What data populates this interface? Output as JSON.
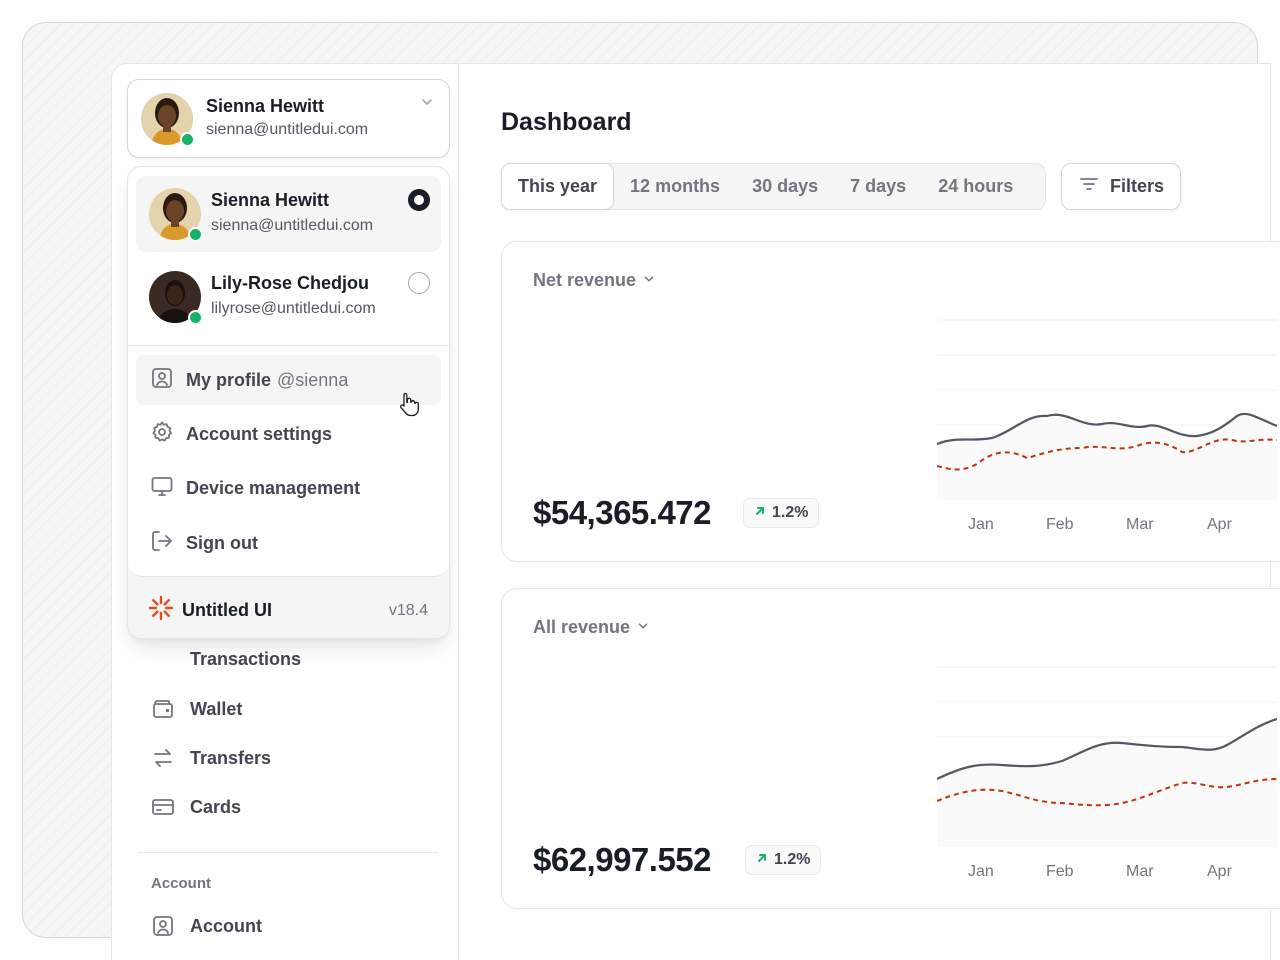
{
  "current_user": {
    "name": "Sienna Hewitt",
    "email": "sienna@untitledui.com"
  },
  "accounts": [
    {
      "name": "Sienna Hewitt",
      "email": "sienna@untitledui.com",
      "selected": true
    },
    {
      "name": "Lily-Rose Chedjou",
      "email": "lilyrose@untitledui.com",
      "selected": false
    }
  ],
  "menu": {
    "profile_label": "My profile",
    "profile_handle": "@sienna",
    "account_settings": "Account settings",
    "device_management": "Device management",
    "sign_out": "Sign out"
  },
  "footer": {
    "brand": "Untitled UI",
    "version": "v18.4"
  },
  "sidebar": {
    "transactions": "Transactions",
    "wallet": "Wallet",
    "transfers": "Transfers",
    "cards": "Cards",
    "section_account": "Account",
    "account": "Account"
  },
  "main": {
    "title": "Dashboard",
    "tabs": [
      "This year",
      "12 months",
      "30 days",
      "7 days",
      "24 hours"
    ],
    "active_tab": "This year",
    "filters": "Filters"
  },
  "cards": [
    {
      "label": "Net revenue",
      "value": "$54,365.472",
      "change": "1.2%",
      "months": [
        "Jan",
        "Feb",
        "Mar",
        "Apr"
      ]
    },
    {
      "label": "All revenue",
      "value": "$62,997.552",
      "change": "1.2%",
      "months": [
        "Jan",
        "Feb",
        "Mar",
        "Apr"
      ]
    }
  ],
  "colors": {
    "accent": "#c4320a",
    "success": "#17b26a",
    "line": "#535862"
  }
}
